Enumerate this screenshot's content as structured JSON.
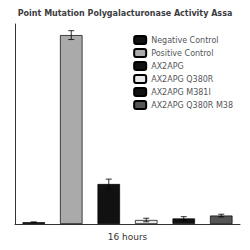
{
  "chart_data": {
    "type": "bar",
    "title": "Point Mutation Polygalacturonase Activity Assa",
    "xlabel": "16 hours",
    "categories": [
      "Negative Control",
      "Positive Control",
      "AX2APG",
      "AX2APG Q380R",
      "AX2APG M381I",
      "AX2APG Q380R M38"
    ],
    "values": [
      0.8,
      85,
      18,
      1.8,
      2.5,
      3.8
    ],
    "errors": [
      0.15,
      2.0,
      2.2,
      0.8,
      0.8,
      0.6
    ],
    "colors": [
      "#111111",
      "#aaaaaa",
      "#111111",
      "#e8e8e8",
      "#111111",
      "#555555"
    ],
    "ylim": [
      0,
      90
    ],
    "legend": "upper right",
    "grid": false,
    "tick_labels": false
  }
}
